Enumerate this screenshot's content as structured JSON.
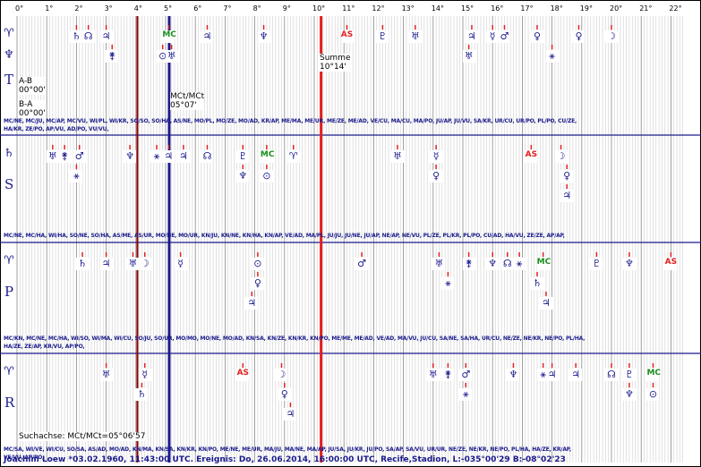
{
  "degree_labels": [
    "0°",
    "1°",
    "2°",
    "3°",
    "4°",
    "5°",
    "6°",
    "7°",
    "8°",
    "9°",
    "10°",
    "11°",
    "12°",
    "13°",
    "14°",
    "15°",
    "16°",
    "17°",
    "18°",
    "19°",
    "20°",
    "21°",
    "22°"
  ],
  "colors": {
    "grid": "#bbbbbb",
    "frame": "#1a1a8c",
    "red_line": "#e02020",
    "blue_line": "#1a1a8c",
    "dark_red_line": "#8b0000",
    "planet": "#1a1a8c",
    "angle": "#e02020",
    "mc": "#1a8c1a"
  },
  "notes": {
    "summe_label": "Summe",
    "summe_value": "10°14'",
    "mct_label": "MCt/MCt",
    "mct_value": "05°07'",
    "ab_label": "A-B",
    "ab_value": "00°00'",
    "ba_label": "B-A",
    "ba_value": "00°00'",
    "suchachse": "Suchachse: MCt/MCt=05°06'57"
  },
  "rows": [
    {
      "letter": "T",
      "top_glyph": "♈",
      "second_glyph": "♆",
      "aspects_1": "MC/NE, MC/JU, MC/AP, MC/VU, WI/PL, WI/KR, SO/SO, SO/HA, AS/NE, MO/PL, MO/ZE, MO/AD, KR/AP, ME/MA, ME/UR, ME/ZE, ME/AD, VE/CU, MA/CU, MA/PO, JU/AP, JU/VU, SA/KR, UR/CU, UR/PO, PL/PO, CU/ZE,",
      "aspects_2": "HA/KR, ZE/PO, AP/VU, AD/PO, VU/VU,",
      "symbols": [
        {
          "name": "saturn",
          "glyph": "♄",
          "deg": 2.0,
          "level": 0,
          "color": "planet"
        },
        {
          "name": "node",
          "glyph": "☊",
          "deg": 2.4,
          "level": 0,
          "color": "planet"
        },
        {
          "name": "jupiter",
          "glyph": "♃",
          "deg": 3.0,
          "level": 0,
          "color": "planet"
        },
        {
          "name": "cupido",
          "glyph": "⚵",
          "deg": 3.2,
          "level": 1,
          "color": "planet"
        },
        {
          "name": "mc",
          "glyph": "MC",
          "deg": 5.1,
          "level": 0,
          "color": "mc"
        },
        {
          "name": "sun",
          "glyph": "⊙",
          "deg": 4.9,
          "level": 1,
          "color": "planet"
        },
        {
          "name": "hades",
          "glyph": "♅",
          "deg": 5.2,
          "level": 1,
          "color": "planet"
        },
        {
          "name": "vulkanus",
          "glyph": "♃",
          "deg": 6.4,
          "level": 0,
          "color": "planet"
        },
        {
          "name": "apollon",
          "glyph": "♆",
          "deg": 8.3,
          "level": 0,
          "color": "planet"
        },
        {
          "name": "ascendant",
          "glyph": "AS",
          "deg": 11.1,
          "level": 0,
          "color": "angle"
        },
        {
          "name": "pluto",
          "glyph": "♇",
          "deg": 12.3,
          "level": 0,
          "color": "planet"
        },
        {
          "name": "uranus",
          "glyph": "♅",
          "deg": 13.4,
          "level": 0,
          "color": "planet"
        },
        {
          "name": "poseidon",
          "glyph": "♃",
          "deg": 15.3,
          "level": 0,
          "color": "planet"
        },
        {
          "name": "kronos",
          "glyph": "♅",
          "deg": 15.2,
          "level": 1,
          "color": "planet"
        },
        {
          "name": "mercury",
          "glyph": "☿",
          "deg": 16.0,
          "level": 0,
          "color": "planet"
        },
        {
          "name": "mars",
          "glyph": "♂",
          "deg": 16.4,
          "level": 0,
          "color": "planet"
        },
        {
          "name": "admetos",
          "glyph": "♀",
          "deg": 17.5,
          "level": 0,
          "color": "planet"
        },
        {
          "name": "zeus",
          "glyph": "⚹",
          "deg": 18.0,
          "level": 1,
          "color": "planet"
        },
        {
          "name": "venus",
          "glyph": "♀",
          "deg": 18.9,
          "level": 0,
          "color": "planet"
        },
        {
          "name": "moon",
          "glyph": "☽",
          "deg": 20.0,
          "level": 0,
          "color": "planet"
        }
      ]
    },
    {
      "letter": "S",
      "top_glyph": "♄",
      "second_glyph": "",
      "aspects_1": "MC/NE, MC/HA, WI/HA, SO/NE, SO/HA, AS/ME, AS/UR, MO/NE, MO/UR, KN/JU, KN/NE, KN/HA, KN/AP, VE/AD, MA/PL, JU/JU, JU/NE, JU/AP, NE/AP, NE/VU, PL/ZE, PL/KR, PL/PO, CU/AD, HA/VU, ZE/ZE, AP/AP,",
      "aspects_2": "",
      "symbols": [
        {
          "name": "hades",
          "glyph": "♅",
          "deg": 1.2,
          "level": 0,
          "color": "planet"
        },
        {
          "name": "cupido",
          "glyph": "⚵",
          "deg": 1.6,
          "level": 0,
          "color": "planet"
        },
        {
          "name": "mars",
          "glyph": "♂",
          "deg": 2.1,
          "level": 0,
          "color": "planet"
        },
        {
          "name": "kronos",
          "glyph": "⚹",
          "deg": 2.0,
          "level": 1,
          "color": "planet"
        },
        {
          "name": "neptune",
          "glyph": "♆",
          "deg": 3.8,
          "level": 0,
          "color": "planet"
        },
        {
          "name": "zeus",
          "glyph": "⚹",
          "deg": 4.7,
          "level": 0,
          "color": "planet"
        },
        {
          "name": "poseidon",
          "glyph": "♃",
          "deg": 5.1,
          "level": 0,
          "color": "planet"
        },
        {
          "name": "vulkanus",
          "glyph": "♃",
          "deg": 5.6,
          "level": 0,
          "color": "planet"
        },
        {
          "name": "node",
          "glyph": "☊",
          "deg": 6.4,
          "level": 0,
          "color": "planet"
        },
        {
          "name": "pluto",
          "glyph": "♇",
          "deg": 7.6,
          "level": 0,
          "color": "planet"
        },
        {
          "name": "apollon",
          "glyph": "♆",
          "deg": 7.6,
          "level": 1,
          "color": "planet"
        },
        {
          "name": "mc",
          "glyph": "MC",
          "deg": 8.4,
          "level": 0,
          "color": "mc"
        },
        {
          "name": "sun",
          "glyph": "⊙",
          "deg": 8.4,
          "level": 1,
          "color": "planet"
        },
        {
          "name": "aries",
          "glyph": "♈",
          "deg": 9.3,
          "level": 0,
          "color": "planet"
        },
        {
          "name": "uranus",
          "glyph": "♅",
          "deg": 12.8,
          "level": 0,
          "color": "planet"
        },
        {
          "name": "mercury",
          "glyph": "☿",
          "deg": 14.1,
          "level": 0,
          "color": "planet"
        },
        {
          "name": "admetos",
          "glyph": "♀",
          "deg": 14.1,
          "level": 1,
          "color": "planet"
        },
        {
          "name": "ascendant",
          "glyph": "AS",
          "deg": 17.3,
          "level": 0,
          "color": "angle"
        },
        {
          "name": "moon",
          "glyph": "☽",
          "deg": 18.3,
          "level": 0,
          "color": "planet"
        },
        {
          "name": "venus",
          "glyph": "♀",
          "deg": 18.5,
          "level": 1,
          "color": "planet"
        },
        {
          "name": "jupiter",
          "glyph": "♃",
          "deg": 18.5,
          "level": 2,
          "color": "planet"
        }
      ]
    },
    {
      "letter": "P",
      "top_glyph": "♈",
      "second_glyph": "",
      "aspects_1": "MC/KN, MC/NE, MC/HA, WI/SO, WI/MA, WI/CU, SO/JU, SO/UR, MO/MO, MO/NE, MO/AD, KN/SA, KN/ZE, KN/KR, KN/PO, ME/ME, ME/AD, VE/AD, MA/VU, JU/CU, SA/NE, SA/HA, UR/CU, NE/ZE, NE/KR, NE/PO, PL/HA,",
      "aspects_2": "HA/ZE, ZE/AP, KR/VU, AP/PO,",
      "symbols": [
        {
          "name": "saturn",
          "glyph": "♄",
          "deg": 2.2,
          "level": 0,
          "color": "planet"
        },
        {
          "name": "jupiter",
          "glyph": "♃",
          "deg": 3.0,
          "level": 0,
          "color": "planet"
        },
        {
          "name": "uranus",
          "glyph": "♅",
          "deg": 3.9,
          "level": 0,
          "color": "planet"
        },
        {
          "name": "moon",
          "glyph": "☽",
          "deg": 4.3,
          "level": 0,
          "color": "planet"
        },
        {
          "name": "mercury",
          "glyph": "☿",
          "deg": 5.5,
          "level": 0,
          "color": "planet"
        },
        {
          "name": "sun",
          "glyph": "⊙",
          "deg": 8.1,
          "level": 0,
          "color": "planet"
        },
        {
          "name": "venus",
          "glyph": "♀",
          "deg": 8.1,
          "level": 1,
          "color": "planet"
        },
        {
          "name": "jupiter-2",
          "glyph": "♃",
          "deg": 7.9,
          "level": 2,
          "color": "planet"
        },
        {
          "name": "mars",
          "glyph": "♂",
          "deg": 11.6,
          "level": 0,
          "color": "planet"
        },
        {
          "name": "hades",
          "glyph": "♅",
          "deg": 14.2,
          "level": 0,
          "color": "planet"
        },
        {
          "name": "kronos",
          "glyph": "⚹",
          "deg": 14.5,
          "level": 1,
          "color": "planet"
        },
        {
          "name": "cupido",
          "glyph": "⚵",
          "deg": 15.2,
          "level": 0,
          "color": "planet"
        },
        {
          "name": "neptune",
          "glyph": "♆",
          "deg": 16.0,
          "level": 0,
          "color": "planet"
        },
        {
          "name": "node",
          "glyph": "☊",
          "deg": 16.5,
          "level": 0,
          "color": "planet"
        },
        {
          "name": "zeus",
          "glyph": "⚹",
          "deg": 16.9,
          "level": 0,
          "color": "planet"
        },
        {
          "name": "mc",
          "glyph": "MC",
          "deg": 17.7,
          "level": 0,
          "color": "mc"
        },
        {
          "name": "saturn-2",
          "glyph": "♄",
          "deg": 17.5,
          "level": 1,
          "color": "planet"
        },
        {
          "name": "poseidon",
          "glyph": "♃",
          "deg": 17.8,
          "level": 2,
          "color": "planet"
        },
        {
          "name": "pluto",
          "glyph": "♇",
          "deg": 19.5,
          "level": 0,
          "color": "planet"
        },
        {
          "name": "apollon",
          "glyph": "♆",
          "deg": 20.6,
          "level": 0,
          "color": "planet"
        },
        {
          "name": "ascendant",
          "glyph": "AS",
          "deg": 22.0,
          "level": 0,
          "color": "angle"
        }
      ]
    },
    {
      "letter": "R",
      "top_glyph": "♈",
      "second_glyph": "",
      "aspects_1": "MC/SA, WI/VE, WI/CU, SO/SA, AS/AD, MO/AD, KN/MA, KN/SA, KN/KR, KN/PO, ME/NE, ME/UR, MA/JU, MA/NE, MA/AP, JU/SA, JU/KR, JU/PO, SA/AP, SA/VU, UR/UR, NE/ZE, NE/KR, NE/PO, PL/HA, HA/ZE, KR/AP,",
      "aspects_2": "VE/VU, AP/PO,",
      "symbols": [
        {
          "name": "uranus",
          "glyph": "♅",
          "deg": 3.0,
          "level": 0,
          "color": "planet"
        },
        {
          "name": "mercury",
          "glyph": "☿",
          "deg": 4.3,
          "level": 0,
          "color": "planet"
        },
        {
          "name": "saturn",
          "glyph": "♄",
          "deg": 4.2,
          "level": 1,
          "color": "planet"
        },
        {
          "name": "ascendant",
          "glyph": "AS",
          "deg": 7.6,
          "level": 0,
          "color": "angle"
        },
        {
          "name": "moon",
          "glyph": "☽",
          "deg": 8.9,
          "level": 0,
          "color": "planet"
        },
        {
          "name": "venus",
          "glyph": "♀",
          "deg": 9.0,
          "level": 1,
          "color": "planet"
        },
        {
          "name": "jupiter",
          "glyph": "♃",
          "deg": 9.2,
          "level": 2,
          "color": "planet"
        },
        {
          "name": "hades",
          "glyph": "♅",
          "deg": 14.0,
          "level": 0,
          "color": "planet"
        },
        {
          "name": "cupido",
          "glyph": "⚵",
          "deg": 14.5,
          "level": 0,
          "color": "planet"
        },
        {
          "name": "mars",
          "glyph": "♂",
          "deg": 15.1,
          "level": 0,
          "color": "planet"
        },
        {
          "name": "kronos",
          "glyph": "⚹",
          "deg": 15.1,
          "level": 1,
          "color": "planet"
        },
        {
          "name": "neptune",
          "glyph": "♆",
          "deg": 16.7,
          "level": 0,
          "color": "planet"
        },
        {
          "name": "zeus",
          "glyph": "⚹",
          "deg": 17.7,
          "level": 0,
          "color": "planet"
        },
        {
          "name": "jupiter-2",
          "glyph": "♃",
          "deg": 18.0,
          "level": 0,
          "color": "planet"
        },
        {
          "name": "poseidon",
          "glyph": "♃",
          "deg": 18.8,
          "level": 0,
          "color": "planet"
        },
        {
          "name": "node",
          "glyph": "☊",
          "deg": 20.0,
          "level": 0,
          "color": "planet"
        },
        {
          "name": "pluto",
          "glyph": "♇",
          "deg": 20.6,
          "level": 0,
          "color": "planet"
        },
        {
          "name": "apollon",
          "glyph": "♆",
          "deg": 20.6,
          "level": 1,
          "color": "planet"
        },
        {
          "name": "mc",
          "glyph": "MC",
          "deg": 21.4,
          "level": 0,
          "color": "mc"
        },
        {
          "name": "sun",
          "glyph": "⊙",
          "deg": 21.4,
          "level": 1,
          "color": "planet"
        }
      ]
    }
  ],
  "axes": [
    {
      "name": "red-axis",
      "deg": 10.23,
      "color": "red_line"
    },
    {
      "name": "mct-axis",
      "deg": 5.12,
      "color": "blue_line"
    },
    {
      "name": "dark-red-axis",
      "deg": 4.05,
      "color": "dark_red_line"
    }
  ],
  "footer": "Joachim Loew  *03.02.1960, 11:43:00 UTC. Ereignis: Do, 26.06.2014, 16:00:00 UTC, Recife,Stadion, L:-035°00'29 B:-08°02'23"
}
